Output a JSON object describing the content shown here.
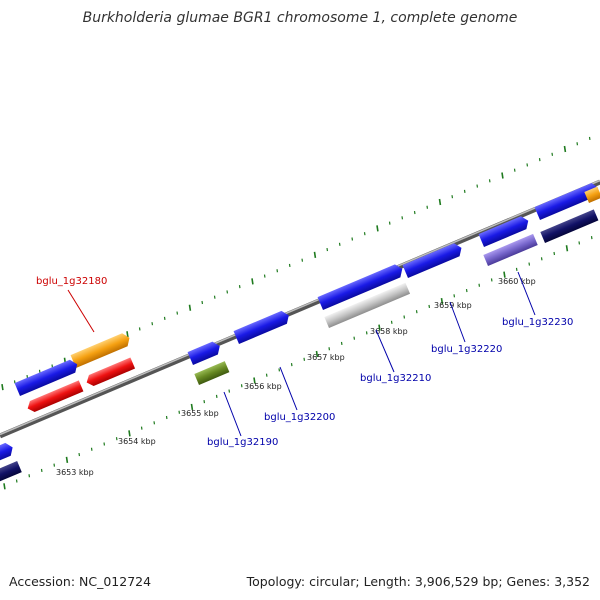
{
  "title": "Burkholderia glumae BGR1 chromosome 1, complete genome",
  "footer": {
    "accession": "Accession: NC_012724",
    "topology": "Topology: circular; Length: 3,906,529 bp; Genes: 3,352"
  },
  "colors": {
    "forward_cds": "#1a1ae6",
    "reverse_cds": "#ee1111",
    "orange_cds": "#f5a011",
    "dark_navy": "#111166",
    "lavender": "#7766cc",
    "gray_cds": "#bbbbbb",
    "olive": "#668822",
    "ticks": "#1e7a1e",
    "backbone": "#888888",
    "label_blue": "#0000aa",
    "label_red": "#cc0000"
  },
  "kbp_labels": [
    "3653 kbp",
    "3654 kbp",
    "3655 kbp",
    "3656 kbp",
    "3657 kbp",
    "3658 kbp",
    "3659 kbp",
    "3660 kbp"
  ],
  "gene_labels": [
    {
      "text": "bglu_1g32180",
      "color": "red"
    },
    {
      "text": "bglu_1g32190",
      "color": "blue"
    },
    {
      "text": "bglu_1g32200",
      "color": "blue"
    },
    {
      "text": "bglu_1g32210",
      "color": "blue"
    },
    {
      "text": "bglu_1g32220",
      "color": "blue"
    },
    {
      "text": "bglu_1g32230",
      "color": "blue"
    }
  ]
}
